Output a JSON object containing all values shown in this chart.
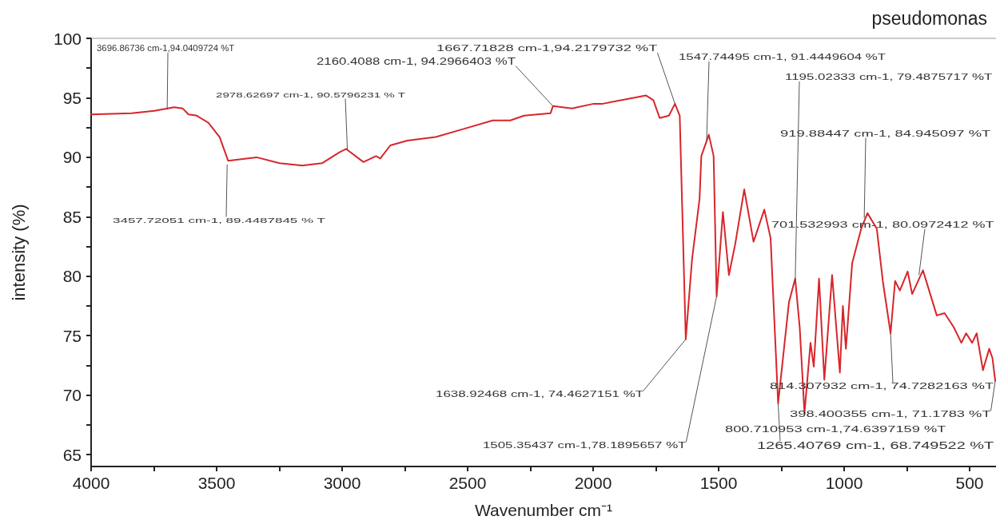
{
  "chart_data": {
    "type": "line",
    "title": "pseudomonas",
    "xlabel": "Wavenumber cm⁻¹",
    "ylabel": "intensity (%)",
    "x": [
      4000,
      3839,
      3748,
      3669,
      3635,
      3612,
      3579,
      3533,
      3488,
      3454,
      3341,
      3250,
      3159,
      3080,
      3012,
      2984,
      2915,
      2865,
      2848,
      2808,
      2740,
      2627,
      2513,
      2400,
      2330,
      2275,
      2170,
      2160,
      2084,
      1998,
      1962,
      1839,
      1790,
      1760,
      1735,
      1698,
      1674,
      1655,
      1631,
      1606,
      1576,
      1569,
      1539,
      1520,
      1508,
      1483,
      1459,
      1434,
      1398,
      1361,
      1318,
      1293,
      1263,
      1220,
      1195,
      1177,
      1158,
      1134,
      1121,
      1100,
      1079,
      1048,
      1017,
      1005,
      993,
      968,
      932,
      907,
      870,
      846,
      815,
      797,
      778,
      747,
      729,
      686,
      631,
      600,
      563,
      533,
      514,
      490,
      472,
      447,
      422,
      409,
      398
    ],
    "values": [
      93.6,
      93.7,
      93.9,
      94.2,
      94.1,
      93.6,
      93.5,
      92.9,
      91.7,
      89.7,
      90.0,
      89.5,
      89.3,
      89.5,
      90.4,
      90.7,
      89.6,
      90.1,
      89.9,
      91.0,
      91.4,
      91.7,
      92.4,
      93.1,
      93.1,
      93.5,
      93.7,
      94.3,
      94.1,
      94.5,
      94.5,
      95.0,
      95.2,
      94.8,
      93.3,
      93.5,
      94.5,
      93.5,
      74.7,
      81.4,
      86.5,
      90.1,
      91.9,
      90.1,
      78.3,
      85.4,
      80.1,
      82.7,
      87.3,
      82.9,
      85.6,
      83.2,
      69.3,
      77.8,
      79.8,
      75.7,
      68.5,
      74.4,
      72.4,
      79.8,
      71.3,
      80.1,
      71.9,
      77.5,
      73.9,
      81.1,
      84.0,
      85.3,
      84.0,
      79.6,
      75.2,
      79.6,
      78.8,
      80.4,
      78.5,
      80.5,
      76.7,
      76.9,
      75.7,
      74.4,
      75.2,
      74.4,
      75.2,
      72.1,
      73.9,
      73.1,
      71.2
    ],
    "color": "#d7262b",
    "marker": "none",
    "line_style": "solid",
    "grid": false,
    "xlim": [
      4000,
      395
    ],
    "xticks": [
      4000,
      {
        "value": 3750,
        "label": null
      },
      3500,
      {
        "value": 3250,
        "label": null
      },
      3000,
      {
        "value": 2750,
        "label": null
      },
      2500,
      {
        "value": 2250,
        "label": null
      },
      2000,
      {
        "value": 1750,
        "label": null
      },
      1500,
      {
        "value": 1250,
        "label": null
      },
      1000,
      {
        "value": 750,
        "label": null
      },
      500
    ],
    "ylim": [
      64,
      100
    ],
    "yticks": [
      65,
      {
        "value": 67.5,
        "label": null
      },
      70,
      {
        "value": 72.5,
        "label": null
      },
      75,
      {
        "value": 77.5,
        "label": null
      },
      80,
      {
        "value": 82.5,
        "label": null
      },
      85,
      {
        "value": 87.5,
        "label": null
      },
      90,
      {
        "value": 92.5,
        "label": null
      },
      95,
      {
        "value": 97.5,
        "label": null
      },
      100
    ],
    "annotations": [
      {
        "text": "3696.86736 cm-1,94.0409724 %T",
        "x": 3697,
        "y": 94.0
      },
      {
        "text": "2160.4088 cm-1, 94.2966403 %T",
        "x": 2160,
        "y": 94.3
      },
      {
        "text": "2978.62697 cm-1, 90.5796231 % T",
        "x": 2979,
        "y": 90.6
      },
      {
        "text": "3457.72051 cm-1, 89.4487845 % T",
        "x": 3458,
        "y": 89.4
      },
      {
        "text": "1667.71828 cm-1,94.2179732 %T",
        "x": 1674,
        "y": 94.5
      },
      {
        "text": "1547.74495 cm-1, 91.4449604 %T",
        "x": 1548,
        "y": 91.4
      },
      {
        "text": "1195.02333 cm-1, 79.4875717 %T",
        "x": 1195,
        "y": 79.5
      },
      {
        "text": "919.88447 cm-1, 84.945097 %T",
        "x": 920,
        "y": 84.9
      },
      {
        "text": "701.532993 cm-1, 80.0972412 %T",
        "x": 702,
        "y": 80.1
      },
      {
        "text": "1638.92468 cm-1, 74.4627151 %T",
        "x": 1631,
        "y": 74.7
      },
      {
        "text": "1505.35437 cm-1,78.1895657 %T",
        "x": 1508,
        "y": 78.3
      },
      {
        "text": "814.307932 cm-1, 74.7282163 %T",
        "x": 815,
        "y": 75.2
      },
      {
        "text": "398.400355 cm-1, 71.1783 %T",
        "x": 398,
        "y": 71.2
      },
      "800.710953 cm-1,74.6397159 %T",
      {
        "text": "1265.40769 cm-1, 68.749522 %T",
        "x": 1263,
        "y": 69.3
      }
    ]
  }
}
